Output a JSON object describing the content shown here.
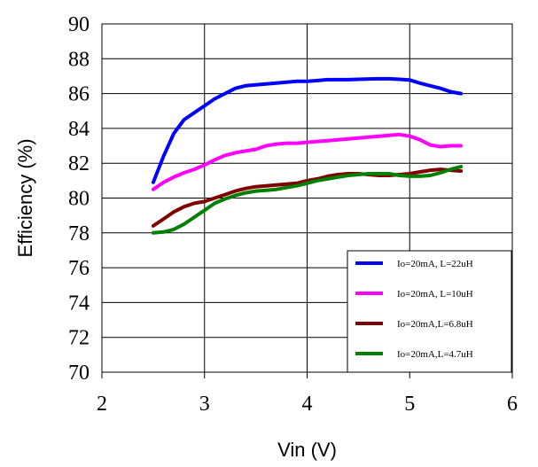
{
  "chart_data": {
    "type": "line",
    "xlabel": "Vin (V)",
    "ylabel": "Efficiency (%)",
    "xlim": [
      2,
      6
    ],
    "ylim": [
      70,
      90
    ],
    "xticks": [
      "2",
      "3",
      "4",
      "5",
      "6"
    ],
    "yticks": [
      "70",
      "72",
      "74",
      "76",
      "78",
      "80",
      "82",
      "84",
      "86",
      "88",
      "90"
    ],
    "grid": true,
    "legend_position": "bottom-right",
    "series": [
      {
        "name": "Io=20mA, L=22uH",
        "color": "#0000ff",
        "x": [
          2.5,
          2.6,
          2.7,
          2.8,
          2.9,
          3.0,
          3.1,
          3.2,
          3.3,
          3.4,
          3.5,
          3.6,
          3.7,
          3.8,
          3.9,
          4.0,
          4.1,
          4.2,
          4.3,
          4.4,
          4.5,
          4.6,
          4.7,
          4.8,
          4.9,
          5.0,
          5.1,
          5.2,
          5.3,
          5.4,
          5.5
        ],
        "y": [
          80.9,
          82.4,
          83.7,
          84.5,
          84.9,
          85.3,
          85.7,
          86.0,
          86.3,
          86.45,
          86.5,
          86.55,
          86.6,
          86.65,
          86.7,
          86.7,
          86.75,
          86.8,
          86.8,
          86.8,
          86.82,
          86.84,
          86.85,
          86.85,
          86.82,
          86.78,
          86.6,
          86.45,
          86.3,
          86.1,
          86.0
        ]
      },
      {
        "name": "Io=20mA, L=10uH",
        "color": "#ff00ff",
        "x": [
          2.5,
          2.6,
          2.7,
          2.8,
          2.9,
          3.0,
          3.1,
          3.2,
          3.3,
          3.4,
          3.5,
          3.6,
          3.7,
          3.8,
          3.9,
          4.0,
          4.1,
          4.2,
          4.3,
          4.4,
          4.5,
          4.6,
          4.7,
          4.8,
          4.9,
          5.0,
          5.1,
          5.2,
          5.3,
          5.4,
          5.5
        ],
        "y": [
          80.5,
          80.9,
          81.2,
          81.45,
          81.65,
          81.9,
          82.2,
          82.45,
          82.6,
          82.7,
          82.8,
          83.0,
          83.1,
          83.15,
          83.15,
          83.2,
          83.25,
          83.3,
          83.35,
          83.4,
          83.45,
          83.5,
          83.55,
          83.6,
          83.65,
          83.55,
          83.35,
          83.05,
          82.95,
          83.0,
          83.0
        ]
      },
      {
        "name": "Io=20mA,L=6.8uH",
        "color": "#800000",
        "x": [
          2.5,
          2.6,
          2.7,
          2.8,
          2.9,
          3.0,
          3.1,
          3.2,
          3.3,
          3.4,
          3.5,
          3.6,
          3.7,
          3.8,
          3.9,
          4.0,
          4.1,
          4.2,
          4.3,
          4.4,
          4.5,
          4.6,
          4.7,
          4.8,
          4.9,
          5.0,
          5.1,
          5.2,
          5.3,
          5.4,
          5.5
        ],
        "y": [
          78.4,
          78.8,
          79.2,
          79.5,
          79.7,
          79.8,
          80.0,
          80.2,
          80.4,
          80.55,
          80.65,
          80.7,
          80.75,
          80.8,
          80.85,
          81.0,
          81.1,
          81.25,
          81.35,
          81.4,
          81.4,
          81.35,
          81.3,
          81.3,
          81.35,
          81.4,
          81.5,
          81.6,
          81.65,
          81.6,
          81.55
        ]
      },
      {
        "name": "Io=20mA,L=4.7uH",
        "color": "#008000",
        "x": [
          2.5,
          2.6,
          2.7,
          2.8,
          2.9,
          3.0,
          3.1,
          3.2,
          3.3,
          3.4,
          3.5,
          3.6,
          3.7,
          3.8,
          3.9,
          4.0,
          4.1,
          4.2,
          4.3,
          4.4,
          4.5,
          4.6,
          4.7,
          4.8,
          4.9,
          5.0,
          5.1,
          5.2,
          5.3,
          5.4,
          5.5
        ],
        "y": [
          78.0,
          78.05,
          78.2,
          78.5,
          78.9,
          79.3,
          79.7,
          79.95,
          80.15,
          80.3,
          80.4,
          80.45,
          80.5,
          80.6,
          80.7,
          80.85,
          81.0,
          81.1,
          81.2,
          81.3,
          81.35,
          81.4,
          81.4,
          81.4,
          81.3,
          81.25,
          81.25,
          81.3,
          81.45,
          81.65,
          81.8
        ]
      }
    ]
  }
}
